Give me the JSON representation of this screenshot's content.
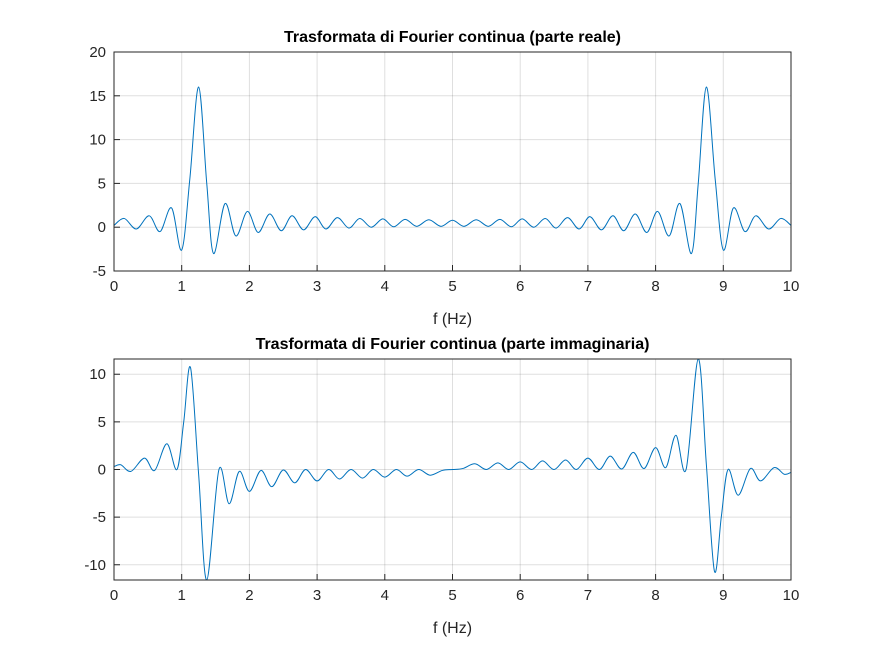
{
  "chart_data": [
    {
      "type": "line",
      "title": "Trasformata di Fourier continua (parte reale)",
      "x_label": "f (Hz)",
      "x": [
        0,
        0.15,
        0.33,
        0.52,
        0.68,
        0.85,
        1.0,
        1.12,
        1.25,
        1.37,
        1.47,
        1.64,
        1.8,
        1.97,
        2.13,
        2.3,
        2.47,
        2.63,
        2.8,
        2.97,
        3.13,
        3.3,
        3.47,
        3.63,
        3.8,
        3.97,
        4.13,
        4.3,
        4.47,
        4.65,
        4.83,
        5.0,
        5.17,
        5.35,
        5.53,
        5.7,
        5.87,
        6.03,
        6.2,
        6.37,
        6.53,
        6.7,
        6.87,
        7.03,
        7.2,
        7.37,
        7.53,
        7.7,
        7.87,
        8.03,
        8.2,
        8.36,
        8.53,
        8.63,
        8.75,
        8.88,
        9.0,
        9.15,
        9.32,
        9.48,
        9.67,
        9.85,
        10
      ],
      "series": [
        {
          "color": "#0072bd",
          "values": [
            0.2,
            1.0,
            -0.2,
            1.3,
            -0.5,
            2.2,
            -2.6,
            5.5,
            16,
            5.0,
            -3.0,
            2.7,
            -1.0,
            1.8,
            -0.6,
            1.5,
            -0.4,
            1.3,
            -0.3,
            1.2,
            -0.2,
            1.1,
            -0.1,
            1.0,
            0.0,
            0.95,
            0.05,
            0.9,
            0.1,
            0.85,
            0.1,
            0.8,
            0.1,
            0.85,
            0.1,
            0.9,
            0.05,
            0.95,
            0.0,
            1.0,
            -0.1,
            1.1,
            -0.2,
            1.2,
            -0.3,
            1.3,
            -0.4,
            1.5,
            -0.6,
            1.8,
            -1.0,
            2.7,
            -3.0,
            5.0,
            16,
            5.5,
            -2.6,
            2.2,
            -0.5,
            1.3,
            -0.2,
            1.0,
            0.2
          ]
        }
      ],
      "xlim": [
        0,
        10
      ],
      "xticks": [
        0,
        1,
        2,
        3,
        4,
        5,
        6,
        7,
        8,
        9,
        10
      ],
      "ylim": [
        -5,
        20
      ],
      "yticks": [
        -5,
        0,
        5,
        10,
        15,
        20
      ],
      "grid": true
    },
    {
      "type": "line",
      "title": "Trasformata di Fourier continua (parte immaginaria)",
      "x_label": "f (Hz)",
      "x": [
        0,
        0.1,
        0.25,
        0.45,
        0.6,
        0.78,
        0.93,
        1.03,
        1.13,
        1.25,
        1.37,
        1.55,
        1.7,
        1.85,
        2.0,
        2.17,
        2.33,
        2.5,
        2.67,
        2.83,
        3.0,
        3.17,
        3.33,
        3.5,
        3.67,
        3.83,
        4.0,
        4.17,
        4.33,
        4.5,
        4.67,
        4.85,
        5.0,
        5.15,
        5.33,
        5.5,
        5.67,
        5.83,
        6.0,
        6.17,
        6.33,
        6.5,
        6.67,
        6.83,
        7.0,
        7.17,
        7.33,
        7.5,
        7.67,
        7.83,
        8.0,
        8.15,
        8.3,
        8.45,
        8.63,
        8.75,
        8.87,
        8.97,
        9.07,
        9.22,
        9.4,
        9.55,
        9.75,
        9.9,
        10
      ],
      "series": [
        {
          "color": "#0072bd",
          "values": [
            0.3,
            0.5,
            -0.2,
            1.2,
            -0.1,
            2.7,
            0.0,
            5.0,
            10.7,
            -0.5,
            -11.6,
            0.0,
            -3.6,
            -0.2,
            -2.3,
            -0.1,
            -1.8,
            -0.05,
            -1.4,
            0.0,
            -1.2,
            0.0,
            -1.0,
            0.0,
            -0.9,
            0.0,
            -0.8,
            0.0,
            -0.7,
            0.0,
            -0.6,
            -0.1,
            0.0,
            0.1,
            0.6,
            0.0,
            0.7,
            0.0,
            0.8,
            0.0,
            0.9,
            0.0,
            1.0,
            0.0,
            1.2,
            0.0,
            1.4,
            0.05,
            1.8,
            0.1,
            2.3,
            0.2,
            3.6,
            0.0,
            11.6,
            0.5,
            -10.7,
            -5.0,
            0.0,
            -2.7,
            0.1,
            -1.2,
            0.2,
            -0.5,
            -0.3
          ]
        }
      ],
      "xlim": [
        0,
        10
      ],
      "xticks": [
        0,
        1,
        2,
        3,
        4,
        5,
        6,
        7,
        8,
        9,
        10
      ],
      "ylim": [
        -11.6,
        11.6
      ],
      "yticks": [
        -10,
        -5,
        0,
        5,
        10
      ],
      "grid": true
    }
  ]
}
